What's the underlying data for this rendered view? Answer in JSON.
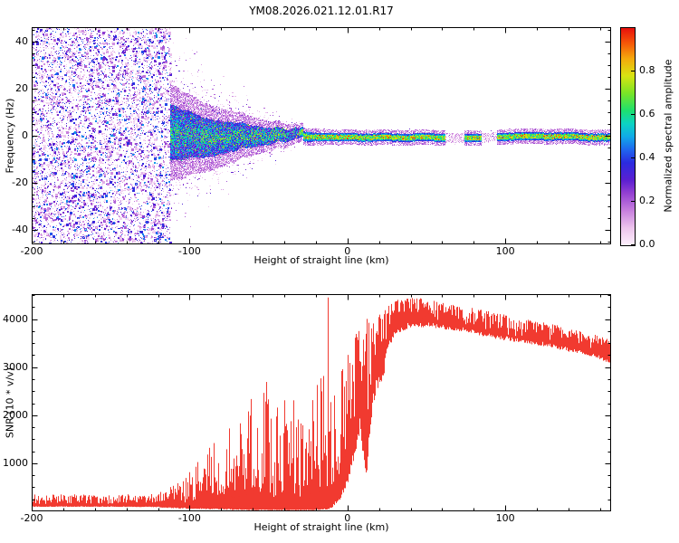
{
  "title": "YM08.2026.021.12.01.R17",
  "axes": {
    "top": {
      "ylabel": "Frequency (Hz)",
      "xlabel": "Height of straight line (km)"
    },
    "bottom": {
      "ylabel": "SNR (10 * v/v)",
      "xlabel": "Height of straight line (km)"
    }
  },
  "colorbar": {
    "label": "Normalized spectral amplitude",
    "ticks": [
      0.0,
      0.2,
      0.4,
      0.6,
      0.8
    ],
    "vmin": 0,
    "vmax": 1
  },
  "chart_data": [
    {
      "type": "heatmap",
      "title": "YM08.2026.021.12.01.R17",
      "xlabel": "Height of straight line (km)",
      "ylabel": "Frequency (Hz)",
      "xlim": [
        -200,
        167
      ],
      "ylim": [
        -46,
        46
      ],
      "xticks": [
        -200,
        -100,
        0,
        100
      ],
      "yticks": [
        -40,
        -20,
        0,
        20,
        40
      ],
      "xtick_minor": 20,
      "ytick_minor": 5,
      "colormap_stops": [
        [
          0.0,
          "#fdf0fc"
        ],
        [
          0.08,
          "#ecc4ec"
        ],
        [
          0.16,
          "#c77fdd"
        ],
        [
          0.24,
          "#9340d2"
        ],
        [
          0.3,
          "#5b1fd1"
        ],
        [
          0.38,
          "#2b2be0"
        ],
        [
          0.44,
          "#1f66ee"
        ],
        [
          0.5,
          "#10aae8"
        ],
        [
          0.56,
          "#0cd3c3"
        ],
        [
          0.62,
          "#1ee06e"
        ],
        [
          0.7,
          "#7ae426"
        ],
        [
          0.78,
          "#d8e412"
        ],
        [
          0.86,
          "#f5a80c"
        ],
        [
          0.93,
          "#f55708"
        ],
        [
          1.0,
          "#e8100c"
        ]
      ],
      "noise_field_end_km": -112,
      "signal_band": {
        "center_hz_left": 0,
        "center_hz_right": -0.8,
        "halfwidth_hz": [
          [
            -112,
            12
          ],
          [
            -95,
            9
          ],
          [
            -75,
            6.5
          ],
          [
            -55,
            4
          ],
          [
            -40,
            2.8
          ],
          [
            -28,
            2
          ],
          [
            0,
            1.6
          ],
          [
            167,
            1.6
          ]
        ],
        "halo_sigma_hz": [
          [
            -112,
            22
          ],
          [
            -80,
            14
          ],
          [
            -55,
            8
          ],
          [
            -30,
            3
          ],
          [
            0,
            2
          ],
          [
            167,
            2
          ]
        ],
        "gaps_km": [
          [
            62,
            74
          ],
          [
            85,
            95
          ]
        ]
      }
    },
    {
      "type": "line",
      "xlabel": "Height of straight line (km)",
      "ylabel": "SNR (10 * v/v)",
      "xlim": [
        -200,
        167
      ],
      "ylim": [
        0,
        4520
      ],
      "xticks": [
        -200,
        -100,
        0,
        100
      ],
      "yticks": [
        1000,
        2000,
        3000,
        4000
      ],
      "xtick_minor": 20,
      "ytick_minor": 250,
      "line_color": "#f13a30",
      "spike_km": -12,
      "spike_value": 4450,
      "envelope": [
        [
          -200,
          120,
          380,
          0.3
        ],
        [
          -150,
          120,
          340,
          0.3
        ],
        [
          -120,
          115,
          380,
          0.35
        ],
        [
          -110,
          100,
          560,
          0.5
        ],
        [
          -100,
          95,
          820,
          0.6
        ],
        [
          -90,
          90,
          1250,
          0.7
        ],
        [
          -80,
          80,
          1600,
          0.75
        ],
        [
          -70,
          70,
          1950,
          0.8
        ],
        [
          -60,
          60,
          2450,
          0.85
        ],
        [
          -52,
          60,
          3050,
          0.85
        ],
        [
          -47,
          60,
          1800,
          0.8
        ],
        [
          -40,
          60,
          3100,
          0.85
        ],
        [
          -32,
          60,
          2400,
          0.85
        ],
        [
          -26,
          60,
          1500,
          0.8
        ],
        [
          -21,
          60,
          2600,
          0.8
        ],
        [
          -16,
          80,
          3000,
          0.8
        ],
        [
          -12,
          100,
          3600,
          0.85
        ],
        [
          -9,
          200,
          2300,
          0.7
        ],
        [
          -5,
          400,
          3300,
          0.6
        ],
        [
          0,
          900,
          3800,
          0.5
        ],
        [
          4,
          1500,
          3900,
          0.42
        ],
        [
          8,
          2300,
          3950,
          0.36
        ],
        [
          12,
          1100,
          4000,
          0.5
        ],
        [
          16,
          2800,
          4050,
          0.3
        ],
        [
          20,
          3100,
          4120,
          0.25
        ],
        [
          25,
          3450,
          4260,
          0.18
        ],
        [
          30,
          3820,
          4400,
          0.12
        ],
        [
          40,
          3950,
          4440,
          0.1
        ],
        [
          50,
          3950,
          4430,
          0.1
        ],
        [
          60,
          3900,
          4340,
          0.1
        ],
        [
          70,
          3860,
          4280,
          0.1
        ],
        [
          80,
          3800,
          4230,
          0.1
        ],
        [
          90,
          3720,
          4160,
          0.11
        ],
        [
          100,
          3660,
          4090,
          0.11
        ],
        [
          110,
          3610,
          4010,
          0.11
        ],
        [
          120,
          3560,
          3960,
          0.12
        ],
        [
          130,
          3500,
          3900,
          0.12
        ],
        [
          140,
          3420,
          3810,
          0.12
        ],
        [
          150,
          3360,
          3730,
          0.13
        ],
        [
          160,
          3260,
          3650,
          0.13
        ],
        [
          167,
          3160,
          3570,
          0.14
        ]
      ]
    }
  ]
}
